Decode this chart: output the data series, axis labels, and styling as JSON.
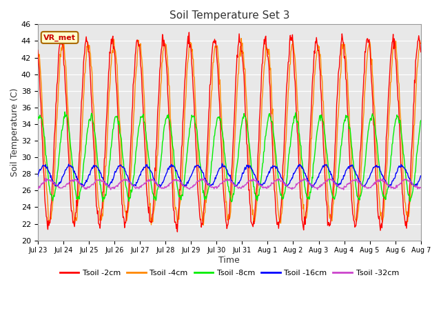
{
  "title": "Soil Temperature Set 3",
  "xlabel": "Time",
  "ylabel": "Soil Temperature (C)",
  "ylim": [
    20,
    46
  ],
  "yticks": [
    20,
    22,
    24,
    26,
    28,
    30,
    32,
    34,
    36,
    38,
    40,
    42,
    44,
    46
  ],
  "colors": {
    "2cm": "#ff0000",
    "4cm": "#ff8800",
    "8cm": "#00ee00",
    "16cm": "#0000ff",
    "32cm": "#cc44cc"
  },
  "legend_labels": [
    "Tsoil -2cm",
    "Tsoil -4cm",
    "Tsoil -8cm",
    "Tsoil -16cm",
    "Tsoil -32cm"
  ],
  "annotation_text": "VR_met",
  "bg_color": "#e8e8e8",
  "fig_bg_color": "#ffffff",
  "n_days": 15,
  "xtick_labels": [
    "Jul 23",
    "Jul 24",
    "Jul 25",
    "Jul 26",
    "Jul 27",
    "Jul 28",
    "Jul 29",
    "Jul 30",
    "Jul 31",
    "Aug 1",
    "Aug 2",
    "Aug 3",
    "Aug 4",
    "Aug 5",
    "Aug 6",
    "Aug 7"
  ],
  "line_width": 1.0,
  "figsize": [
    6.4,
    4.8
  ],
  "dpi": 100
}
